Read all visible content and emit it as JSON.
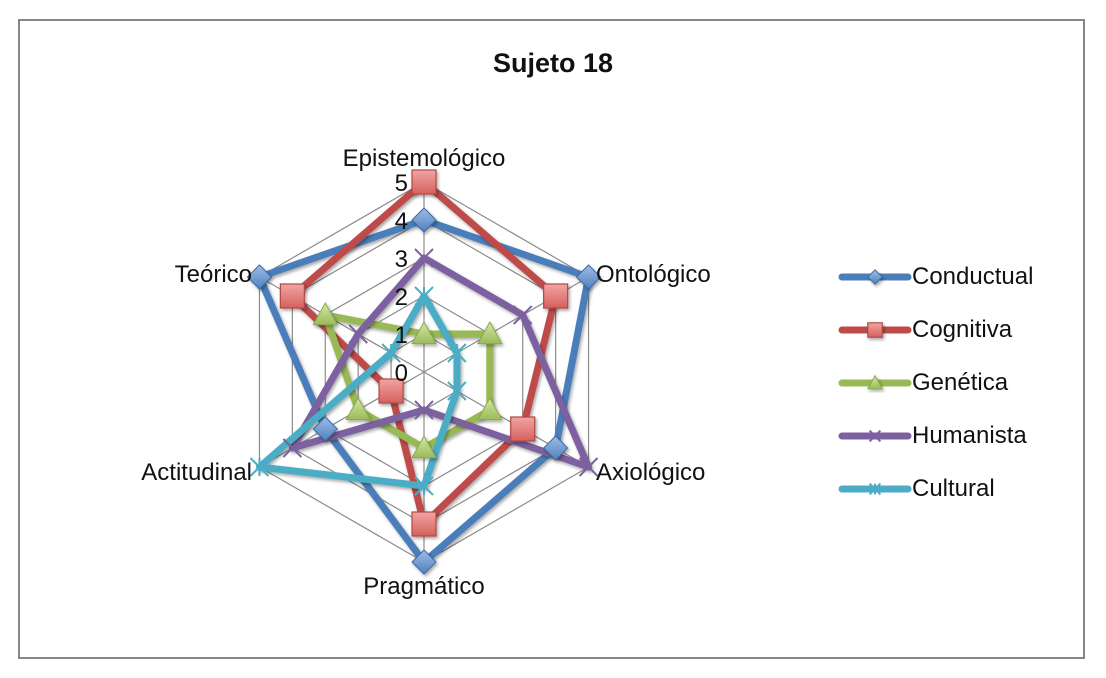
{
  "chart_data": {
    "type": "radar",
    "title": "Sujeto 18",
    "categories": [
      "Epistemológico",
      "Ontológico",
      "Axiológico",
      "Pragmático",
      "Actitudinal",
      "Teórico"
    ],
    "rlim": [
      0,
      5
    ],
    "ticks": [
      "0",
      "1",
      "2",
      "3",
      "4",
      "5"
    ],
    "grid": true,
    "legend_position": "right",
    "series": [
      {
        "name": "Conductual",
        "color": "#4a7ebb",
        "marker": "diamond",
        "values": [
          4,
          5,
          4,
          5,
          3,
          5
        ]
      },
      {
        "name": "Cognitiva",
        "color": "#be4b48",
        "marker": "square",
        "values": [
          5,
          4,
          3,
          4,
          1,
          4
        ]
      },
      {
        "name": "Genética",
        "color": "#98b954",
        "marker": "triangle",
        "values": [
          1,
          2,
          2,
          2,
          2,
          3
        ]
      },
      {
        "name": "Humanista",
        "color": "#7d60a0",
        "marker": "x",
        "values": [
          3,
          3,
          5,
          1,
          4,
          2
        ]
      },
      {
        "name": "Cultural",
        "color": "#4bacc6",
        "marker": "star",
        "values": [
          2,
          1,
          1,
          3,
          5,
          1
        ]
      }
    ]
  }
}
